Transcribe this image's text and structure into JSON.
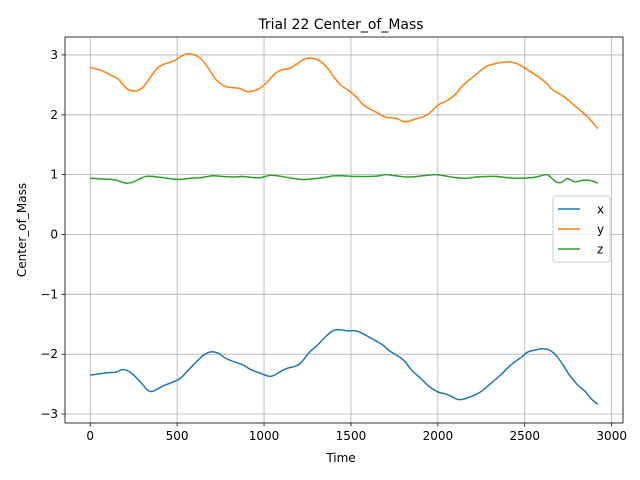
{
  "chart_data": {
    "type": "line",
    "title": "Trial 22 Center_of_Mass",
    "xlabel": "Time",
    "ylabel": "Center_of_Mass",
    "xlim": [
      -145,
      3065
    ],
    "ylim": [
      -3.15,
      3.3
    ],
    "xticks": [
      0,
      500,
      1000,
      1500,
      2000,
      2500,
      3000
    ],
    "yticks": [
      -3,
      -2,
      -1,
      0,
      1,
      2,
      3
    ],
    "grid": true,
    "legend_position": "center-right",
    "series": [
      {
        "name": "x",
        "color": "#1f77b4",
        "points": [
          [
            0,
            -2.35
          ],
          [
            50,
            -2.33
          ],
          [
            100,
            -2.31
          ],
          [
            150,
            -2.3
          ],
          [
            180,
            -2.26
          ],
          [
            210,
            -2.27
          ],
          [
            250,
            -2.35
          ],
          [
            300,
            -2.5
          ],
          [
            330,
            -2.6
          ],
          [
            360,
            -2.62
          ],
          [
            420,
            -2.53
          ],
          [
            480,
            -2.46
          ],
          [
            520,
            -2.4
          ],
          [
            570,
            -2.25
          ],
          [
            620,
            -2.1
          ],
          [
            660,
            -2.0
          ],
          [
            700,
            -1.96
          ],
          [
            740,
            -1.99
          ],
          [
            780,
            -2.07
          ],
          [
            840,
            -2.14
          ],
          [
            880,
            -2.18
          ],
          [
            920,
            -2.25
          ],
          [
            980,
            -2.32
          ],
          [
            1030,
            -2.37
          ],
          [
            1060,
            -2.35
          ],
          [
            1120,
            -2.25
          ],
          [
            1180,
            -2.2
          ],
          [
            1210,
            -2.15
          ],
          [
            1260,
            -1.97
          ],
          [
            1300,
            -1.87
          ],
          [
            1350,
            -1.72
          ],
          [
            1390,
            -1.62
          ],
          [
            1430,
            -1.59
          ],
          [
            1480,
            -1.61
          ],
          [
            1530,
            -1.61
          ],
          [
            1570,
            -1.66
          ],
          [
            1620,
            -1.74
          ],
          [
            1680,
            -1.84
          ],
          [
            1720,
            -1.94
          ],
          [
            1780,
            -2.05
          ],
          [
            1810,
            -2.12
          ],
          [
            1850,
            -2.27
          ],
          [
            1900,
            -2.4
          ],
          [
            1950,
            -2.54
          ],
          [
            2000,
            -2.63
          ],
          [
            2050,
            -2.67
          ],
          [
            2100,
            -2.74
          ],
          [
            2130,
            -2.76
          ],
          [
            2180,
            -2.72
          ],
          [
            2240,
            -2.64
          ],
          [
            2300,
            -2.5
          ],
          [
            2360,
            -2.35
          ],
          [
            2420,
            -2.18
          ],
          [
            2480,
            -2.05
          ],
          [
            2520,
            -1.96
          ],
          [
            2560,
            -1.93
          ],
          [
            2600,
            -1.91
          ],
          [
            2640,
            -1.93
          ],
          [
            2680,
            -2.02
          ],
          [
            2720,
            -2.18
          ],
          [
            2760,
            -2.36
          ],
          [
            2800,
            -2.5
          ],
          [
            2850,
            -2.63
          ],
          [
            2880,
            -2.74
          ],
          [
            2920,
            -2.84
          ]
        ]
      },
      {
        "name": "y",
        "color": "#ff7f0e",
        "points": [
          [
            0,
            2.79
          ],
          [
            40,
            2.76
          ],
          [
            80,
            2.72
          ],
          [
            120,
            2.66
          ],
          [
            160,
            2.6
          ],
          [
            190,
            2.5
          ],
          [
            220,
            2.42
          ],
          [
            260,
            2.4
          ],
          [
            300,
            2.45
          ],
          [
            340,
            2.6
          ],
          [
            380,
            2.76
          ],
          [
            420,
            2.84
          ],
          [
            480,
            2.9
          ],
          [
            520,
            2.97
          ],
          [
            560,
            3.02
          ],
          [
            600,
            3.0
          ],
          [
            640,
            2.93
          ],
          [
            680,
            2.78
          ],
          [
            720,
            2.6
          ],
          [
            760,
            2.5
          ],
          [
            800,
            2.46
          ],
          [
            860,
            2.44
          ],
          [
            900,
            2.39
          ],
          [
            940,
            2.4
          ],
          [
            980,
            2.45
          ],
          [
            1020,
            2.55
          ],
          [
            1060,
            2.68
          ],
          [
            1100,
            2.75
          ],
          [
            1150,
            2.78
          ],
          [
            1200,
            2.87
          ],
          [
            1240,
            2.94
          ],
          [
            1280,
            2.94
          ],
          [
            1320,
            2.9
          ],
          [
            1360,
            2.8
          ],
          [
            1400,
            2.64
          ],
          [
            1440,
            2.5
          ],
          [
            1490,
            2.4
          ],
          [
            1530,
            2.3
          ],
          [
            1570,
            2.17
          ],
          [
            1620,
            2.08
          ],
          [
            1660,
            2.02
          ],
          [
            1700,
            1.96
          ],
          [
            1760,
            1.94
          ],
          [
            1800,
            1.89
          ],
          [
            1830,
            1.89
          ],
          [
            1870,
            1.93
          ],
          [
            1920,
            1.97
          ],
          [
            1960,
            2.05
          ],
          [
            2000,
            2.16
          ],
          [
            2060,
            2.25
          ],
          [
            2100,
            2.34
          ],
          [
            2140,
            2.48
          ],
          [
            2180,
            2.58
          ],
          [
            2230,
            2.7
          ],
          [
            2280,
            2.81
          ],
          [
            2340,
            2.86
          ],
          [
            2380,
            2.88
          ],
          [
            2420,
            2.88
          ],
          [
            2460,
            2.85
          ],
          [
            2500,
            2.78
          ],
          [
            2560,
            2.67
          ],
          [
            2620,
            2.54
          ],
          [
            2660,
            2.42
          ],
          [
            2700,
            2.35
          ],
          [
            2740,
            2.27
          ],
          [
            2800,
            2.12
          ],
          [
            2860,
            1.97
          ],
          [
            2920,
            1.77
          ]
        ]
      },
      {
        "name": "z",
        "color": "#2ca02c",
        "points": [
          [
            0,
            0.94
          ],
          [
            60,
            0.93
          ],
          [
            120,
            0.92
          ],
          [
            170,
            0.89
          ],
          [
            200,
            0.86
          ],
          [
            240,
            0.87
          ],
          [
            280,
            0.92
          ],
          [
            320,
            0.97
          ],
          [
            360,
            0.97
          ],
          [
            420,
            0.95
          ],
          [
            470,
            0.93
          ],
          [
            520,
            0.92
          ],
          [
            580,
            0.94
          ],
          [
            640,
            0.95
          ],
          [
            700,
            0.98
          ],
          [
            760,
            0.97
          ],
          [
            820,
            0.96
          ],
          [
            880,
            0.97
          ],
          [
            940,
            0.95
          ],
          [
            980,
            0.95
          ],
          [
            1040,
            0.99
          ],
          [
            1100,
            0.97
          ],
          [
            1160,
            0.94
          ],
          [
            1220,
            0.92
          ],
          [
            1280,
            0.93
          ],
          [
            1340,
            0.95
          ],
          [
            1400,
            0.98
          ],
          [
            1460,
            0.98
          ],
          [
            1520,
            0.97
          ],
          [
            1600,
            0.97
          ],
          [
            1660,
            0.98
          ],
          [
            1700,
            1.0
          ],
          [
            1760,
            0.98
          ],
          [
            1820,
            0.96
          ],
          [
            1880,
            0.97
          ],
          [
            1940,
            0.99
          ],
          [
            1990,
            1.0
          ],
          [
            2040,
            0.98
          ],
          [
            2100,
            0.95
          ],
          [
            2160,
            0.94
          ],
          [
            2220,
            0.96
          ],
          [
            2280,
            0.97
          ],
          [
            2340,
            0.97
          ],
          [
            2400,
            0.95
          ],
          [
            2460,
            0.94
          ],
          [
            2540,
            0.95
          ],
          [
            2580,
            0.97
          ],
          [
            2620,
            1.0
          ],
          [
            2640,
            0.98
          ],
          [
            2680,
            0.88
          ],
          [
            2710,
            0.87
          ],
          [
            2740,
            0.93
          ],
          [
            2760,
            0.92
          ],
          [
            2790,
            0.88
          ],
          [
            2840,
            0.91
          ],
          [
            2880,
            0.9
          ],
          [
            2920,
            0.86
          ]
        ]
      }
    ]
  }
}
